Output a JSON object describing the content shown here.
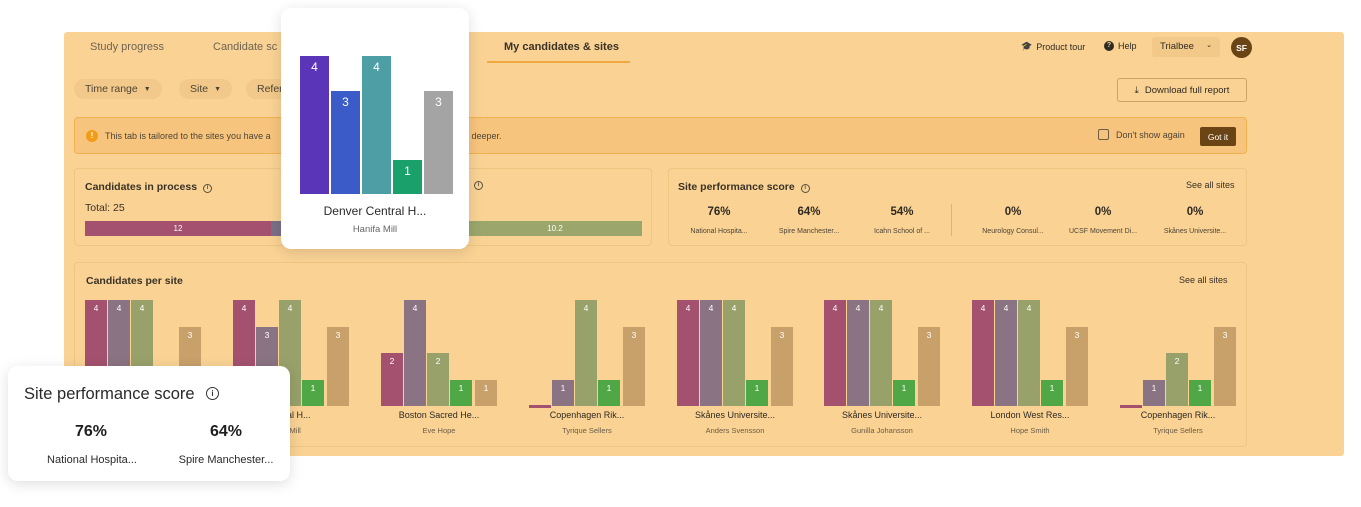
{
  "tabs": [
    {
      "label": "Study progress"
    },
    {
      "label": "Candidate sc"
    },
    {
      "label": "My candidates & sites"
    }
  ],
  "topbar": {
    "product_tour": "Product tour",
    "help": "Help",
    "account": "Trialbee",
    "avatar_initials": "SF"
  },
  "filters": {
    "time_range": "Time range",
    "site": "Site",
    "referral": "Refer"
  },
  "download_label": "Download full report",
  "banner": {
    "text_left": "This tab is tailored to the sites you have a",
    "text_right": "e deeper.",
    "dont_show": "Don't show again",
    "got_it": "Got it"
  },
  "candidates_in_process": {
    "title": "Candidates in process",
    "total": "Total: 25",
    "segments": [
      {
        "label": "12",
        "color": "#a3516e"
      },
      {
        "label": "",
        "color": "#7a6f86"
      }
    ]
  },
  "second_metric": {
    "bar_label": "10.2",
    "color": "#9aa66b"
  },
  "site_performance": {
    "title": "Site performance score",
    "see_all": "See all sites",
    "scores": [
      {
        "value": "76%",
        "label": "National Hospita..."
      },
      {
        "value": "64%",
        "label": "Spire Manchester..."
      },
      {
        "value": "54%",
        "label": "Icahn School of ..."
      },
      {
        "value": "0%",
        "label": "Neurology Consul..."
      },
      {
        "value": "0%",
        "label": "UCSF Movement Di..."
      },
      {
        "value": "0%",
        "label": "Skånes Universite..."
      }
    ]
  },
  "candidates_per_site": {
    "title": "Candidates per site",
    "see_all": "See all sites",
    "colors": [
      "#a3516e",
      "#8a7382",
      "#98a16a",
      "#4fa845",
      "#c8a06a"
    ],
    "sites": [
      {
        "name": "",
        "person": "",
        "values": [
          4,
          4,
          4,
          0,
          3
        ]
      },
      {
        "name": "entral H...",
        "person": "fa Mill",
        "values": [
          4,
          3,
          4,
          1,
          3
        ]
      },
      {
        "name": "Boston Sacred He...",
        "person": "Eve Hope",
        "values": [
          2,
          4,
          2,
          1,
          1
        ]
      },
      {
        "name": "Copenhagen Rik...",
        "person": "Tyrique Sellers",
        "values": [
          0,
          1,
          4,
          1,
          3
        ]
      },
      {
        "name": "Skånes Universite...",
        "person": "Anders Svensson",
        "values": [
          4,
          4,
          4,
          1,
          3
        ]
      },
      {
        "name": "Skånes Universite...",
        "person": "Gunilla Johansson",
        "values": [
          4,
          4,
          4,
          1,
          3
        ]
      },
      {
        "name": "London West Res...",
        "person": "Hope Smith",
        "values": [
          4,
          4,
          4,
          1,
          3
        ]
      },
      {
        "name": "Copenhagen Rik...",
        "person": "Tyrique Sellers",
        "values": [
          0,
          1,
          2,
          1,
          3
        ]
      }
    ]
  },
  "popup": {
    "site": "Denver Central H...",
    "person": "Hanifa Mill",
    "values": [
      4,
      3,
      4,
      1,
      3
    ],
    "colors": [
      "#5a35b8",
      "#3b5bc9",
      "#4e9ea6",
      "#1aa06a",
      "#a4a4a4"
    ]
  },
  "score_float": {
    "title": "Site performance score",
    "scores": [
      {
        "value": "76%",
        "label": "National Hospita..."
      },
      {
        "value": "64%",
        "label": "Spire Manchester..."
      }
    ]
  }
}
